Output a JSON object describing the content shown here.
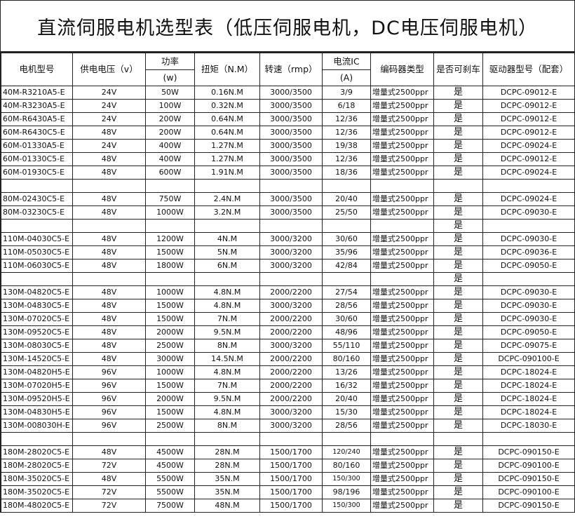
{
  "title": "直流伺服电机选型表（低压伺服电机，DC电压伺服电机）",
  "headers": {
    "model": "电机型号",
    "voltage": "供电电压（v）",
    "power": "功率",
    "power_unit": "(w)",
    "torque": "扭矩（N.M）",
    "speed": "转速（rmp）",
    "current": "电流IC",
    "current_unit": "(A)",
    "encoder": "编码器类型",
    "brake": "是否可刹车",
    "driver": "驱动器型号（配套）"
  },
  "rows": [
    [
      "40M-R3210A5-E",
      "24V",
      "50W",
      "0.16N.M",
      "3000/3500",
      "3/9",
      "增量式2500ppr",
      "是",
      "DCPC-09012-E"
    ],
    [
      "40M-R3230A5-E",
      "24V",
      "100W",
      "0.32N.M",
      "3000/3500",
      "6/18",
      "增量式2500ppr",
      "是",
      "DCPC-09012-E"
    ],
    [
      "60M-R6430A5-E",
      "24V",
      "200W",
      "0.64N.M",
      "3000/3500",
      "12/36",
      "增量式2500ppr",
      "是",
      "DCPC-09012-E"
    ],
    [
      "60M-R6430C5-E",
      "48V",
      "200W",
      "0.64N.M",
      "3000/3500",
      "12/36",
      "增量式2500ppr",
      "是",
      "DCPC-09012-E"
    ],
    [
      "60M-01330A5-E",
      "24V",
      "400W",
      "1.27N.M",
      "3000/3500",
      "19/38",
      "增量式2500ppr",
      "是",
      "DCPC-09024-E"
    ],
    [
      "60M-01330C5-E",
      "48V",
      "400W",
      "1.27N.M",
      "3000/3500",
      "12/36",
      "增量式2500ppr",
      "是",
      "DCPC-09012-E"
    ],
    [
      "60M-01930C5-E",
      "48V",
      "600W",
      "1.91N.M",
      "3000/3500",
      "18/36",
      "增量式2500ppr",
      "是",
      "DCPC-09024-E"
    ],
    [
      "",
      "",
      "",
      "",
      "",
      "",
      "",
      "",
      ""
    ],
    [
      "80M-02430C5-E",
      "48V",
      "750W",
      "2.4N.M",
      "3000/3500",
      "20/40",
      "增量式2500ppr",
      "是",
      "DCPC-09024-E"
    ],
    [
      "80M-03230C5-E",
      "48V",
      "1000W",
      "3.2N.M",
      "3000/3500",
      "25/50",
      "增量式2500ppr",
      "是",
      "DCPC-09030-E"
    ],
    [
      "",
      "",
      "",
      "",
      "",
      "",
      "",
      "是",
      ""
    ],
    [
      "110M-04030C5-E",
      "48V",
      "1200W",
      "4N.M",
      "3000/3200",
      "30/60",
      "增量式2500ppr",
      "是",
      "DCPC-09030-E"
    ],
    [
      "110M-05030C5-E",
      "48V",
      "1500W",
      "5N.M",
      "3000/3200",
      "35/96",
      "增量式2500ppr",
      "是",
      "DCPC-09036-E"
    ],
    [
      "110M-06030C5-E",
      "48V",
      "1800W",
      "6N.M",
      "3000/3200",
      "42/84",
      "增量式2500ppr",
      "是",
      "DCPC-09050-E"
    ],
    [
      "",
      "",
      "",
      "",
      "",
      "",
      "",
      "是",
      ""
    ],
    [
      "130M-04820C5-E",
      "48V",
      "1000W",
      "4.8N.M",
      "2000/2200",
      "27/54",
      "增量式2500ppr",
      "是",
      "DCPC-09030-E"
    ],
    [
      "130M-04830C5-E",
      "48V",
      "1500W",
      "4.8N.M",
      "3000/3200",
      "28/56",
      "增量式2500ppr",
      "是",
      "DCPC-09030-E"
    ],
    [
      "130M-07020C5-E",
      "48V",
      "1500W",
      "7N.M",
      "2000/2200",
      "30/60",
      "增量式2500ppr",
      "是",
      "DCPC-09030-E"
    ],
    [
      "130M-09520C5-E",
      "48V",
      "2000W",
      "9.5N.M",
      "2000/2200",
      "48/96",
      "增量式2500ppr",
      "是",
      "DCPC-09050-E"
    ],
    [
      "130M-08030C5-E",
      "48V",
      "2500W",
      "8N.M",
      "3000/3200",
      "55/110",
      "增量式2500ppr",
      "是",
      "DCPC-09075-E"
    ],
    [
      "130M-14520C5-E",
      "48V",
      "3000W",
      "14.5N.M",
      "2000/2200",
      "80/160",
      "增量式2500ppr",
      "是",
      "DCPC-090100-E"
    ],
    [
      "130M-04820H5-E",
      "96V",
      "1000W",
      "4.8N.M",
      "2000/2200",
      "13/26",
      "增量式2500ppr",
      "是",
      "DCPC-18024-E"
    ],
    [
      "130M-07020H5-E",
      "96V",
      "1500W",
      "7N.M",
      "2000/2200",
      "16/32",
      "增量式2500ppr",
      "是",
      "DCPC-18024-E"
    ],
    [
      "130M-09520H5-E",
      "96V",
      "2000W",
      "9.5N.M",
      "2000/2200",
      "20/40",
      "增量式2500ppr",
      "是",
      "DCPC-18024-E"
    ],
    [
      "130M-04830H5-E",
      "96V",
      "1500W",
      "4.8N.M",
      "3000/3200",
      "15/30",
      "增量式2500ppr",
      "是",
      "DCPC-18024-E"
    ],
    [
      "130M-008030H-E",
      "96V",
      "2500W",
      "8N.M",
      "3000/3200",
      "28/56",
      "增量式2500ppr",
      "是",
      "DCPC-18030-E"
    ],
    [
      "",
      "",
      "",
      "",
      "",
      "",
      "",
      "",
      ""
    ],
    [
      "180M-28020C5-E",
      "48V",
      "4500W",
      "28N.M",
      "1500/1700",
      "120/240",
      "增量式2500ppr",
      "是",
      "DCPC-090150-E"
    ],
    [
      "180M-28020C5-E",
      "72V",
      "4500W",
      "28N.M",
      "1500/1700",
      "80/160",
      "增量式2500ppr",
      "是",
      "DCPC-090100-E"
    ],
    [
      "180M-35020C5-E",
      "48V",
      "5500W",
      "35N.M",
      "1500/1700",
      "150/300",
      "增量式2500ppr",
      "是",
      "DCPC-090150-E"
    ],
    [
      "180M-35020C5-E",
      "72V",
      "5500W",
      "35N.M",
      "1500/1700",
      "98/196",
      "增量式2500ppr",
      "是",
      "DCPC-090100-E"
    ],
    [
      "180M-48020C5-E",
      "72V",
      "7500W",
      "48N.M",
      "1500/1700",
      "150/300",
      "增量式2500ppr",
      "是",
      "DCPC-090150-E"
    ]
  ]
}
